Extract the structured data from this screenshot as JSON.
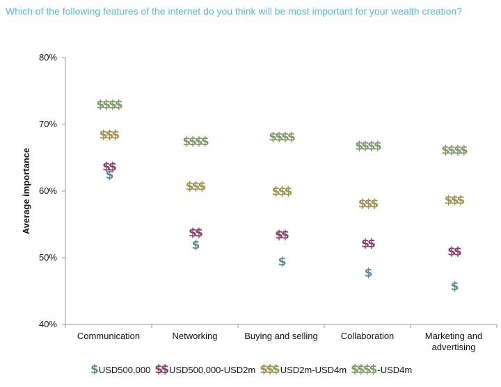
{
  "question": "Which of the following features of the internet do you think will be most important for your wealth creation?",
  "colors": {
    "s1": "#5a8a96",
    "s2": "#8c3e6a",
    "s3": "#a09250",
    "s4": "#7e9a6a",
    "axis": "#999999",
    "grid": "#bbbbbb"
  },
  "chart_data": {
    "type": "scatter",
    "title": "",
    "ylabel": "Average importance",
    "xlabel": "",
    "categories": [
      "Communication",
      "Networking",
      "Buying and selling",
      "Collaboration",
      "Marketing and advertising"
    ],
    "yticks": [
      "80%",
      "70%",
      "60%",
      "50%",
      "40%"
    ],
    "ylim": [
      40,
      80
    ],
    "grid": false,
    "legend_position": "bottom",
    "series": [
      {
        "name": "USD500,000",
        "symbol": "$",
        "values": [
          62.5,
          52,
          49.5,
          47.8,
          45.8
        ]
      },
      {
        "name": "USD500,000-USD2m",
        "symbol": "$$",
        "values": [
          63.7,
          53.8,
          53.5,
          52.2,
          51
        ]
      },
      {
        "name": "USD2m-USD4m",
        "symbol": "$$$",
        "values": [
          68.5,
          60.8,
          60,
          58.2,
          58.7
        ]
      },
      {
        "name": "-USD4m",
        "symbol": "$$$$",
        "values": [
          73,
          67.5,
          68.2,
          66.8,
          66.2
        ]
      }
    ]
  }
}
